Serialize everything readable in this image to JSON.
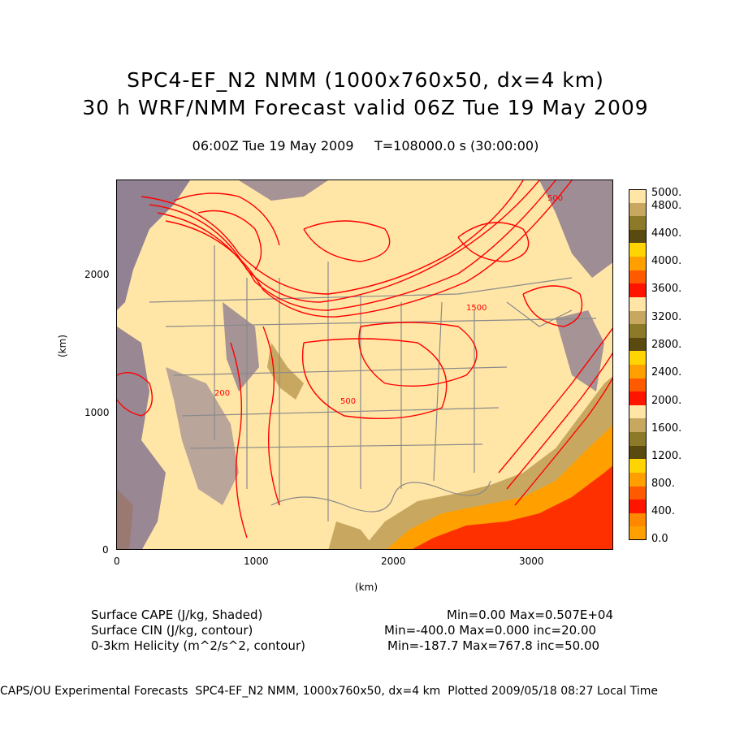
{
  "title": "SPC4-EF_N2 NMM (1000x760x50, dx=4 km)",
  "subtitle": "30 h WRF/NMM Forecast valid 06Z Tue 19 May 2009",
  "time_line": "06:00Z Tue 19 May 2009     T=108000.0 s (30:00:00)",
  "y_axis": {
    "label": "(km)",
    "ticks": [
      "2000",
      "1000",
      "0"
    ]
  },
  "x_axis": {
    "label": "(km)",
    "ticks": [
      "0",
      "1000",
      "2000",
      "3000"
    ]
  },
  "colorbar": {
    "labels": [
      "5000.",
      "4800.",
      "4400.",
      "4000.",
      "3600.",
      "3200.",
      "2800.",
      "2400.",
      "2000.",
      "1600.",
      "1200.",
      "800.",
      "400.",
      "0.0"
    ],
    "colors": [
      "#ffe6a6",
      "#c8a860",
      "#8c7a28",
      "#5a4a10",
      "#ffd400",
      "#ff9f00",
      "#ff5a00",
      "#ff1400",
      "#ffe6a6",
      "#c8a860",
      "#8c7a28",
      "#5a4a10",
      "#ffd400",
      "#ff9f00",
      "#ff5a00",
      "#ff1400",
      "#ffe6a6",
      "#c8a860",
      "#8c7a28",
      "#5a4a10",
      "#ffd400",
      "#ff9f00",
      "#ff5a00",
      "#ff1400",
      "#ff8800",
      "#ff9f00"
    ]
  },
  "contour_labels": [
    "1500",
    "500",
    "500",
    "200"
  ],
  "legend": {
    "left": [
      "Surface CAPE (J/kg, Shaded)",
      "Surface CIN (J/kg, contour)",
      "0-3km Helicity (m^2/s^2, contour)"
    ],
    "right": [
      "Min=0.00 Max=0.507E+04",
      "Min=-400.0 Max=0.000 inc=20.00",
      "Min=-187.7 Max=767.8 inc=50.00"
    ]
  },
  "footer": "CAPS/OU Experimental Forecasts  SPC4-EF_N2 NMM, 1000x760x50, dx=4 km  Plotted 2009/05/18 08:27 Local Time",
  "colors": {
    "base": "#ffe6a6",
    "cin": "#7f6f8f",
    "helicity": "#ff0000",
    "border": "#8a8a8a"
  }
}
